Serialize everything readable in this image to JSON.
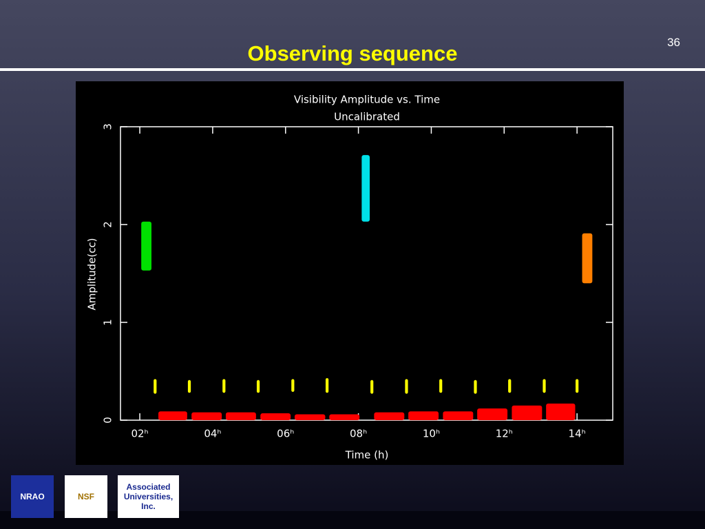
{
  "slide_number": "36",
  "title": "Observing sequence",
  "logos": [
    "NRAO",
    "NSF",
    "Associated Universities, Inc."
  ],
  "chart_data": {
    "type": "scan",
    "title": "Visibility Amplitude vs. Time",
    "subtitle": "Uncalibrated",
    "x_label": "Time (h)",
    "y_label": "Amplitude(cc)",
    "xlim": [
      1.47,
      14.98
    ],
    "ylim": [
      0,
      3
    ],
    "xticks": [
      {
        "value": 2,
        "label": "02ʰ"
      },
      {
        "value": 4,
        "label": "04ʰ"
      },
      {
        "value": 6,
        "label": "06ʰ"
      },
      {
        "value": 8,
        "label": "08ʰ"
      },
      {
        "value": 10,
        "label": "10ʰ"
      },
      {
        "value": 12,
        "label": "12ʰ"
      },
      {
        "value": 14,
        "label": "14ʰ"
      }
    ],
    "yticks": [
      0,
      1,
      2,
      3
    ],
    "series": [
      {
        "color": "#00e000",
        "x_start": [
          2.04
        ],
        "x_end": [
          2.32
        ],
        "low": [
          1.53
        ],
        "high": [
          2.03
        ]
      },
      {
        "color": "#00e0e8",
        "x_start": [
          8.09
        ],
        "x_end": [
          8.31
        ],
        "low": [
          2.03
        ],
        "high": [
          2.71
        ]
      },
      {
        "color": "#ff7f00",
        "x_start": [
          14.14
        ],
        "x_end": [
          14.42
        ],
        "low": [
          1.4
        ],
        "high": [
          1.91
        ]
      },
      {
        "color": "#ffff00",
        "x_start": [
          2.38,
          3.32,
          4.27,
          5.21,
          6.16,
          7.1,
          8.33,
          9.28,
          10.22,
          11.17,
          12.11,
          13.06,
          13.96
        ],
        "x_end": [
          2.46,
          3.4,
          4.35,
          5.29,
          6.24,
          7.18,
          8.41,
          9.36,
          10.3,
          11.25,
          12.19,
          13.14,
          14.04
        ],
        "low": [
          0.27,
          0.28,
          0.28,
          0.28,
          0.29,
          0.28,
          0.27,
          0.27,
          0.28,
          0.27,
          0.28,
          0.28,
          0.28
        ],
        "high": [
          0.42,
          0.41,
          0.42,
          0.41,
          0.42,
          0.43,
          0.41,
          0.42,
          0.42,
          0.41,
          0.42,
          0.42,
          0.42
        ]
      },
      {
        "color": "#ff0000",
        "x_start": [
          2.51,
          3.42,
          4.36,
          5.31,
          6.25,
          7.2,
          8.43,
          9.37,
          10.32,
          11.26,
          12.21,
          13.15
        ],
        "x_end": [
          3.3,
          4.25,
          5.19,
          6.14,
          7.09,
          8.03,
          9.26,
          10.2,
          11.15,
          12.09,
          13.04,
          13.95
        ],
        "low": [
          0,
          0,
          0,
          0,
          0,
          0,
          0,
          0,
          0,
          0,
          0,
          0
        ],
        "high": [
          0.09,
          0.08,
          0.08,
          0.07,
          0.06,
          0.06,
          0.08,
          0.09,
          0.09,
          0.12,
          0.15,
          0.17
        ]
      }
    ]
  }
}
